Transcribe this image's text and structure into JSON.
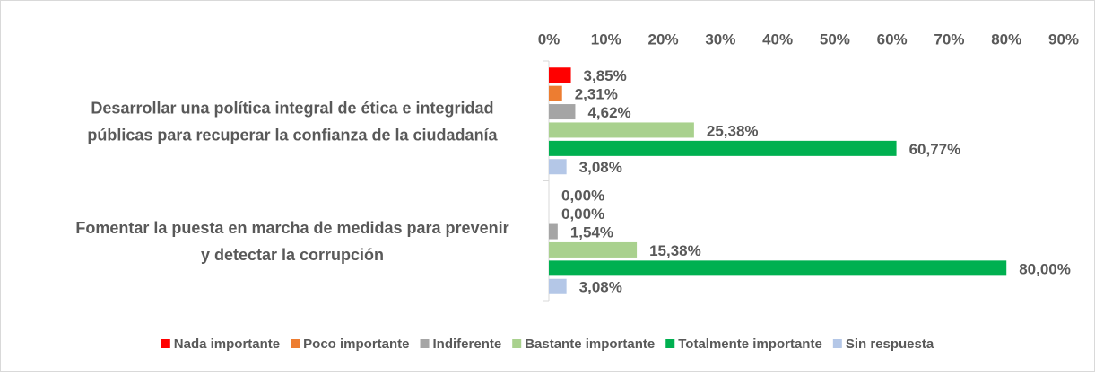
{
  "chart_data": {
    "type": "hbar",
    "categories": [
      [
        "Desarrollar una política integral de ética e integridad",
        "públicas para recuperar la confianza de la ciudadanía"
      ],
      [
        "Fomentar la puesta en marcha de medidas para prevenir",
        "y detectar la corrupción"
      ]
    ],
    "series": [
      {
        "name": "Nada importante",
        "color": "#ff0000",
        "values": [
          3.85,
          0
        ],
        "value_labels": [
          "3,85%",
          "0,00%"
        ]
      },
      {
        "name": "Poco importante",
        "color": "#ed7d31",
        "values": [
          2.31,
          0
        ],
        "value_labels": [
          "2,31%",
          "0,00%"
        ]
      },
      {
        "name": "Indiferente",
        "color": "#a5a5a5",
        "values": [
          4.62,
          1.54
        ],
        "value_labels": [
          "4,62%",
          "1,54%"
        ]
      },
      {
        "name": "Bastante importante",
        "color": "#a9d18e",
        "values": [
          25.38,
          15.38
        ],
        "value_labels": [
          "25,38%",
          "15,38%"
        ]
      },
      {
        "name": "Totalmente importante",
        "color": "#00b050",
        "values": [
          60.77,
          80.0
        ],
        "value_labels": [
          "60,77%",
          "80,00%"
        ]
      },
      {
        "name": "Sin respuesta",
        "color": "#b4c7e7",
        "values": [
          3.08,
          3.08
        ],
        "value_labels": [
          "3,08%",
          "3,08%"
        ]
      }
    ],
    "xlim": [
      0,
      90
    ],
    "xticks": [
      {
        "value": 0,
        "label": "0%"
      },
      {
        "value": 10,
        "label": "10%"
      },
      {
        "value": 20,
        "label": "20%"
      },
      {
        "value": 30,
        "label": "30%"
      },
      {
        "value": 40,
        "label": "40%"
      },
      {
        "value": 50,
        "label": "50%"
      },
      {
        "value": 60,
        "label": "60%"
      },
      {
        "value": 70,
        "label": "70%"
      },
      {
        "value": 80,
        "label": "80%"
      },
      {
        "value": 90,
        "label": "90%"
      }
    ],
    "legend": "bottom"
  }
}
